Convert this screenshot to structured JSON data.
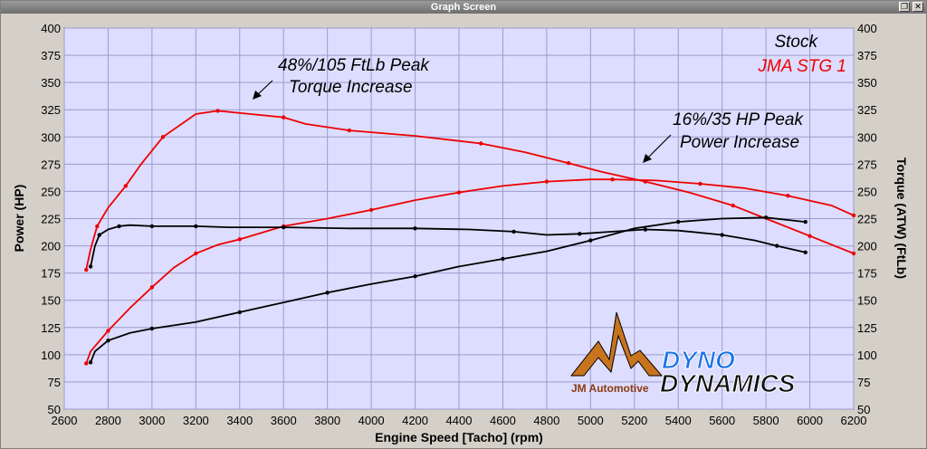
{
  "window": {
    "title": "Graph Screen",
    "restore_glyph": "❐",
    "close_glyph": "✕"
  },
  "chart_data": {
    "type": "line",
    "xlabel": "Engine Speed [Tacho] (rpm)",
    "ylabel_left": "Power (HP)",
    "ylabel_right": "Torque (ATW) (FtLb)",
    "xlim": [
      2600,
      6200
    ],
    "ylim": [
      50,
      400
    ],
    "x_ticks": [
      2600,
      2800,
      3000,
      3200,
      3400,
      3600,
      3800,
      4000,
      4200,
      4400,
      4600,
      4800,
      5000,
      5200,
      5400,
      5600,
      5800,
      6000,
      6200
    ],
    "y_ticks": [
      50,
      75,
      100,
      125,
      150,
      175,
      200,
      225,
      250,
      275,
      300,
      325,
      350,
      375,
      400
    ],
    "grid": true,
    "plot_background": "#ddddff",
    "legend": {
      "placement": "top-right",
      "entries": [
        {
          "label": "Stock",
          "color": "#000000"
        },
        {
          "label": "JMA STG 1",
          "color": "#ee0000"
        }
      ]
    },
    "annotations": [
      {
        "line1": "48%/105 FtLb Peak",
        "line2": "Torque Increase"
      },
      {
        "line1": "16%/35 HP Peak",
        "line2": "Power Increase"
      }
    ],
    "series": [
      {
        "name": "JMA STG 1 Torque",
        "color": "#ee0000",
        "x": [
          2700,
          2720,
          2750,
          2800,
          2880,
          2950,
          3050,
          3200,
          3300,
          3450,
          3600,
          3700,
          3900,
          4200,
          4500,
          4700,
          4900,
          5050,
          5250,
          5450,
          5650,
          5800,
          6000,
          6200
        ],
        "y": [
          178,
          197,
          218,
          235,
          255,
          275,
          300,
          321,
          324,
          321,
          318,
          312,
          306,
          301,
          294,
          286,
          276,
          268,
          259,
          249,
          237,
          225,
          209,
          193
        ]
      },
      {
        "name": "JMA STG 1 Power",
        "color": "#ee0000",
        "x": [
          2700,
          2720,
          2800,
          2900,
          3000,
          3100,
          3200,
          3300,
          3400,
          3500,
          3600,
          3800,
          4000,
          4200,
          4400,
          4600,
          4800,
          5000,
          5100,
          5300,
          5500,
          5700,
          5900,
          6100,
          6200
        ],
        "y": [
          92,
          103,
          122,
          143,
          162,
          180,
          193,
          201,
          206,
          212,
          218,
          225,
          233,
          242,
          249,
          255,
          259,
          261,
          261,
          260,
          257,
          253,
          246,
          237,
          228
        ]
      },
      {
        "name": "Stock Torque",
        "color": "#000000",
        "x": [
          2720,
          2740,
          2760,
          2800,
          2850,
          2900,
          3000,
          3100,
          3200,
          3350,
          3600,
          3900,
          4200,
          4450,
          4650,
          4800,
          4950,
          5100,
          5250,
          5400,
          5600,
          5750,
          5850,
          5980
        ],
        "y": [
          181,
          200,
          210,
          215,
          218,
          219,
          218,
          218,
          218,
          217,
          217,
          216,
          216,
          215,
          213,
          210,
          211,
          213,
          215,
          214,
          210,
          205,
          200,
          194
        ]
      },
      {
        "name": "Stock Power",
        "color": "#000000",
        "x": [
          2720,
          2740,
          2800,
          2900,
          3000,
          3200,
          3400,
          3600,
          3800,
          4000,
          4200,
          4400,
          4600,
          4800,
          5000,
          5200,
          5400,
          5600,
          5800,
          5980
        ],
        "y": [
          93,
          103,
          113,
          120,
          124,
          130,
          139,
          148,
          157,
          165,
          172,
          181,
          188,
          195,
          205,
          216,
          222,
          225,
          226,
          222
        ]
      }
    ]
  },
  "logos": {
    "jm_text": "JM Automotive",
    "dyno_text": "DYNO",
    "dynamics_text": "DYNAMICS"
  }
}
